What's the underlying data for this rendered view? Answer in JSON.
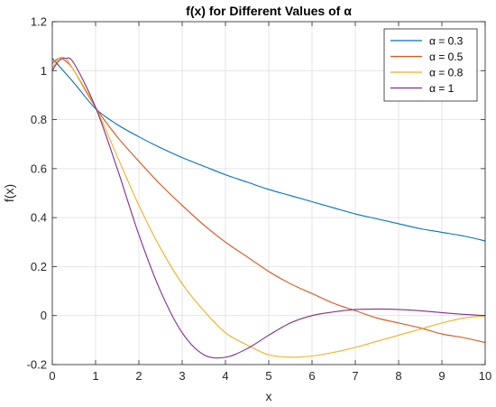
{
  "chart_data": {
    "type": "line",
    "title": "f(x) for Different Values of α",
    "xlabel": "x",
    "ylabel": "f(x)",
    "xlim": [
      0,
      10
    ],
    "ylim": [
      -0.2,
      1.2
    ],
    "xticks": [
      0,
      1,
      2,
      3,
      4,
      5,
      6,
      7,
      8,
      9,
      10
    ],
    "yticks": [
      -0.2,
      0,
      0.2,
      0.4,
      0.6,
      0.8,
      1,
      1.2
    ],
    "grid": true,
    "legend_position": "top-right",
    "series": [
      {
        "name": "α = 0.3",
        "color": "#0072BD",
        "x": [
          0,
          0.5,
          1,
          1.5,
          2,
          2.5,
          3,
          3.5,
          4,
          4.5,
          5,
          5.5,
          6,
          6.5,
          7,
          7.5,
          8,
          8.5,
          9,
          9.5,
          10
        ],
        "y": [
          1.05,
          0.95,
          0.845,
          0.78,
          0.73,
          0.685,
          0.645,
          0.61,
          0.575,
          0.545,
          0.515,
          0.49,
          0.465,
          0.44,
          0.415,
          0.395,
          0.375,
          0.355,
          0.34,
          0.325,
          0.305
        ]
      },
      {
        "name": "α = 0.5",
        "color": "#D95319",
        "x": [
          0,
          0.15,
          0.3,
          0.5,
          1,
          1.5,
          2,
          2.5,
          3,
          3.5,
          4,
          4.5,
          5,
          5.5,
          6,
          6.5,
          7,
          7.5,
          8,
          8.5,
          9,
          9.5,
          10
        ],
        "y": [
          1.03,
          1.05,
          1.04,
          1.0,
          0.85,
          0.73,
          0.63,
          0.535,
          0.45,
          0.37,
          0.3,
          0.24,
          0.18,
          0.13,
          0.09,
          0.05,
          0.02,
          -0.01,
          -0.03,
          -0.05,
          -0.075,
          -0.09,
          -0.11
        ]
      },
      {
        "name": "α = 0.8",
        "color": "#EDB120",
        "x": [
          0,
          0.15,
          0.3,
          0.5,
          1,
          1.5,
          2,
          2.5,
          3,
          3.5,
          4,
          4.5,
          5,
          5.5,
          6,
          6.5,
          7,
          7.5,
          8,
          8.5,
          9,
          9.5,
          10
        ],
        "y": [
          1.01,
          1.05,
          1.05,
          1.0,
          0.85,
          0.65,
          0.45,
          0.275,
          0.13,
          0.02,
          -0.07,
          -0.12,
          -0.16,
          -0.17,
          -0.165,
          -0.15,
          -0.13,
          -0.105,
          -0.08,
          -0.055,
          -0.03,
          -0.01,
          0.0
        ]
      },
      {
        "name": "α = 1",
        "color": "#7E2F8E",
        "x": [
          0,
          0.15,
          0.3,
          0.5,
          1,
          1.5,
          2,
          2.5,
          3,
          3.5,
          4,
          4.5,
          5,
          5.5,
          6,
          6.5,
          7,
          7.5,
          8,
          8.5,
          9,
          9.5,
          10
        ],
        "y": [
          1.0,
          1.04,
          1.05,
          1.03,
          0.85,
          0.6,
          0.33,
          0.1,
          -0.07,
          -0.16,
          -0.17,
          -0.135,
          -0.08,
          -0.03,
          0.0,
          0.015,
          0.025,
          0.027,
          0.025,
          0.02,
          0.012,
          0.005,
          0.0
        ]
      }
    ]
  }
}
